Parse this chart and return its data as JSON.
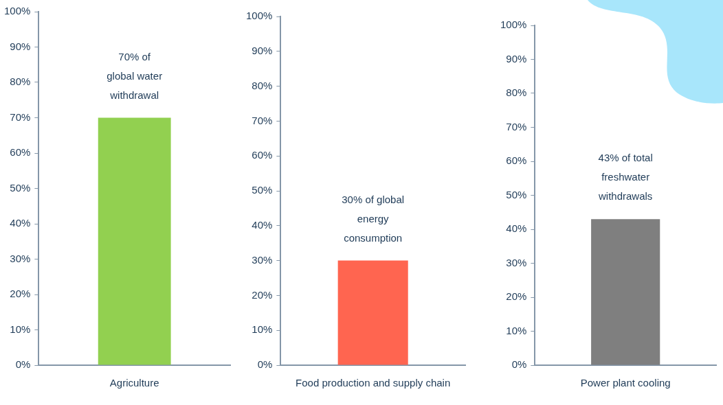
{
  "chart_data": [
    {
      "type": "bar",
      "categories": [
        "Agriculture"
      ],
      "values": [
        70
      ],
      "color": "#92d050",
      "ylim": [
        0,
        100
      ],
      "yticks": [
        {
          "value": 0,
          "label": "0%"
        },
        {
          "value": 10,
          "label": "10%"
        },
        {
          "value": 20,
          "label": "20%"
        },
        {
          "value": 30,
          "label": "30%"
        },
        {
          "value": 40,
          "label": "40%"
        },
        {
          "value": 50,
          "label": "50%"
        },
        {
          "value": 60,
          "label": "60%"
        },
        {
          "value": 70,
          "label": "70%"
        },
        {
          "value": 80,
          "label": "80%"
        },
        {
          "value": 90,
          "label": "90%"
        },
        {
          "value": 100,
          "label": "100%"
        }
      ],
      "grid": false,
      "legend": false,
      "annotations": [
        {
          "text": "70% of\nglobal water\nwithdrawal",
          "x": "Agriculture",
          "y": 70
        }
      ]
    },
    {
      "type": "bar",
      "categories": [
        "Food production and supply chain"
      ],
      "values": [
        30
      ],
      "color": "#ff6550",
      "ylim": [
        0,
        100
      ],
      "yticks": [
        {
          "value": 0,
          "label": "0%"
        },
        {
          "value": 10,
          "label": "10%"
        },
        {
          "value": 20,
          "label": "20%"
        },
        {
          "value": 30,
          "label": "30%"
        },
        {
          "value": 40,
          "label": "40%"
        },
        {
          "value": 50,
          "label": "50%"
        },
        {
          "value": 60,
          "label": "60%"
        },
        {
          "value": 70,
          "label": "70%"
        },
        {
          "value": 80,
          "label": "80%"
        },
        {
          "value": 90,
          "label": "90%"
        },
        {
          "value": 100,
          "label": "100%"
        }
      ],
      "grid": false,
      "legend": false,
      "annotations": [
        {
          "text": "30% of global\nenergy\nconsumption",
          "x": "Food production and supply chain",
          "y": 30
        }
      ]
    },
    {
      "type": "bar",
      "categories": [
        "Power plant cooling"
      ],
      "values": [
        43
      ],
      "color": "#7f7f7f",
      "ylim": [
        0,
        100
      ],
      "yticks": [
        {
          "value": 0,
          "label": "0%"
        },
        {
          "value": 10,
          "label": "10%"
        },
        {
          "value": 20,
          "label": "20%"
        },
        {
          "value": 30,
          "label": "30%"
        },
        {
          "value": 40,
          "label": "40%"
        },
        {
          "value": 50,
          "label": "50%"
        },
        {
          "value": 60,
          "label": "60%"
        },
        {
          "value": 70,
          "label": "70%"
        },
        {
          "value": 80,
          "label": "80%"
        },
        {
          "value": 90,
          "label": "90%"
        },
        {
          "value": 100,
          "label": "100%"
        }
      ],
      "grid": false,
      "legend": false,
      "annotations": [
        {
          "text": "43% of total\nfreshwater\nwithdrawals",
          "x": "Power plant cooling",
          "y": 43
        }
      ]
    }
  ]
}
